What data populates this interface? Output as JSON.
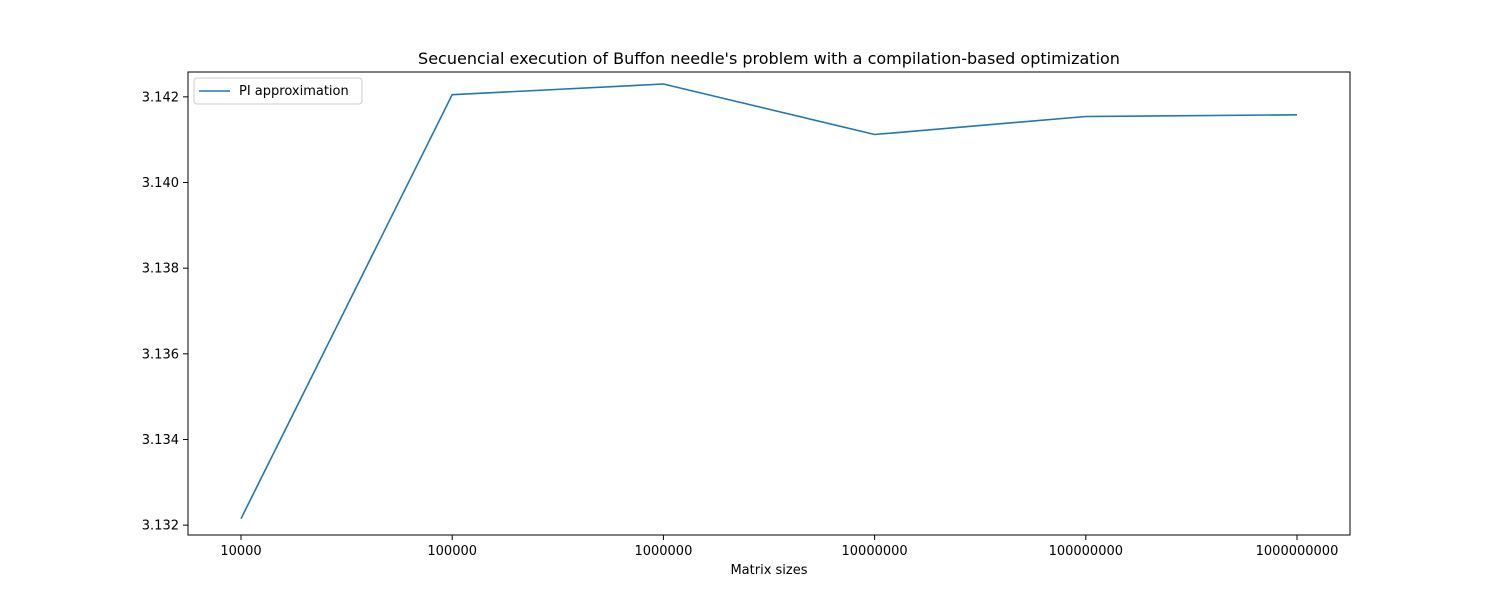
{
  "chart_data": {
    "type": "line",
    "title": "Secuencial execution of Buffon needle's problem with a compilation-based optimization",
    "xlabel": "Matrix sizes",
    "ylabel": "",
    "categories": [
      "10000",
      "100000",
      "1000000",
      "10000000",
      "100000000",
      "1000000000"
    ],
    "series": [
      {
        "name": "PI approximation",
        "values": [
          3.13215,
          3.14205,
          3.1423,
          3.14112,
          3.14154,
          3.14158
        ],
        "color": "#1f77b4"
      }
    ],
    "ylim": [
      3.13177,
      3.14258
    ],
    "yticks": [
      "3.132",
      "3.134",
      "3.136",
      "3.138",
      "3.140",
      "3.142"
    ],
    "grid": false,
    "legend_position": "top-left"
  }
}
